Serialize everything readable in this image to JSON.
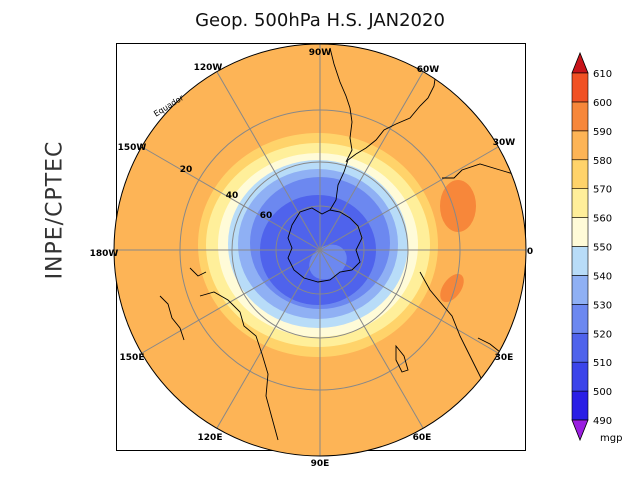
{
  "title": "Geop. 500hPa H.S. JAN2020",
  "side_label": "INPE/CPTEC",
  "map": {
    "projection": "south-polar-stereographic",
    "longitude_labels": [
      {
        "text": "90W",
        "lon": -90
      },
      {
        "text": "60W",
        "lon": -60
      },
      {
        "text": "30W",
        "lon": -30
      },
      {
        "text": "0",
        "lon": 0
      },
      {
        "text": "30E",
        "lon": 30
      },
      {
        "text": "60E",
        "lon": 60
      },
      {
        "text": "90E",
        "lon": 90
      },
      {
        "text": "120E",
        "lon": 120
      },
      {
        "text": "150E",
        "lon": 150
      },
      {
        "text": "180W",
        "lon": 180
      },
      {
        "text": "150W",
        "lon": -150
      },
      {
        "text": "120W",
        "lon": -120
      }
    ],
    "latitude_labels": [
      {
        "text": "20",
        "lat": -20
      },
      {
        "text": "40",
        "lat": -40
      },
      {
        "text": "60",
        "lat": -60
      }
    ],
    "equator_label": "Equador"
  },
  "colorbar": {
    "unit": "mgp",
    "levels": [
      "490",
      "500",
      "510",
      "520",
      "530",
      "540",
      "550",
      "560",
      "570",
      "580",
      "590",
      "600",
      "610"
    ],
    "colors": {
      "below": "#9a1ee0",
      "bins": [
        "#2a1fe6",
        "#3b44ea",
        "#4f63ec",
        "#6c88f0",
        "#8fb0f4",
        "#b8dcf8",
        "#fffbd8",
        "#ffef9a",
        "#ffd36a",
        "#fdb456",
        "#f7873a",
        "#f15124"
      ],
      "above": "#c8141a"
    }
  }
}
